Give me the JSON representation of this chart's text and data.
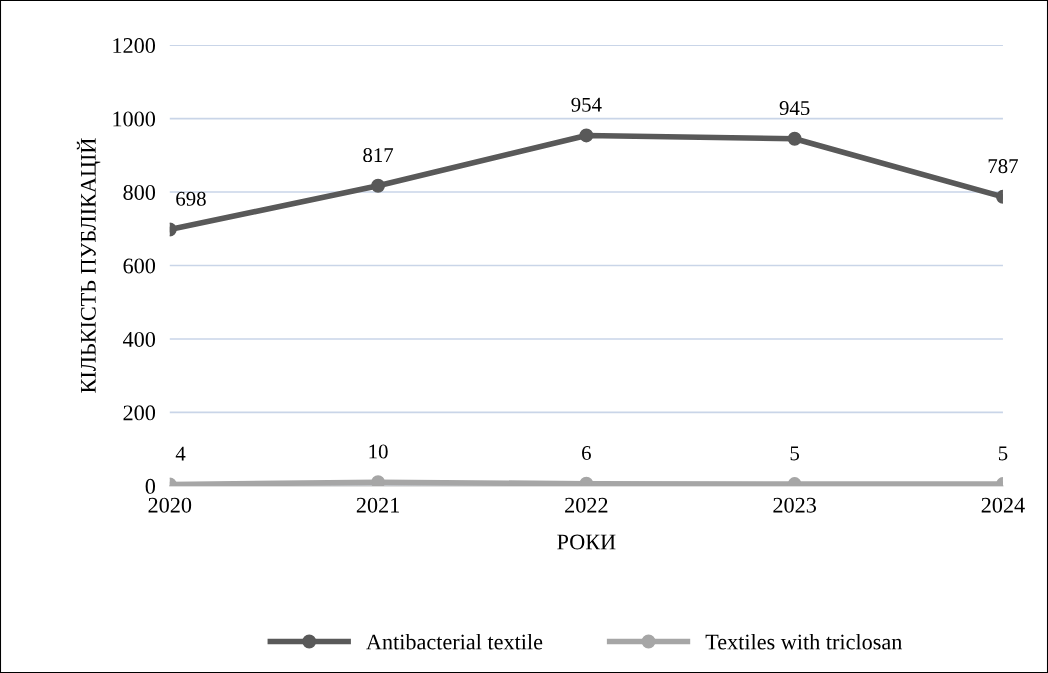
{
  "chart_data": {
    "type": "line",
    "categories": [
      "2020",
      "2021",
      "2022",
      "2023",
      "2024"
    ],
    "series": [
      {
        "name": "Antibacterial textile",
        "color": "#595959",
        "values": [
          698,
          817,
          954,
          945,
          787
        ]
      },
      {
        "name": "Textiles with triclosan",
        "color": "#a6a6a6",
        "values": [
          4,
          10,
          6,
          5,
          5
        ]
      }
    ],
    "xlabel": "РОКИ",
    "ylabel": "КІЛЬКІСТЬ ПУБЛІКАЦІЙ",
    "ylim": [
      0,
      1200
    ],
    "yticks": [
      0,
      200,
      400,
      600,
      800,
      1000,
      1200
    ],
    "grid": "y",
    "legend": "bottom",
    "marker": "circle",
    "line_style": "solid",
    "data_labels": true
  }
}
